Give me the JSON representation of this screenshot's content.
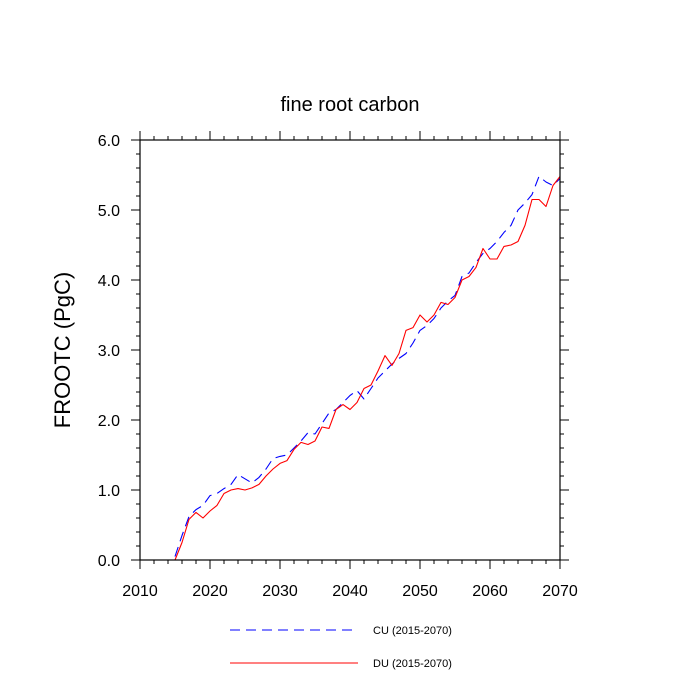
{
  "chart_data": {
    "type": "line",
    "title": "fine root carbon",
    "xlabel": "",
    "ylabel": "FROOTC  (PgC)",
    "xlim": [
      2010,
      2070
    ],
    "ylim": [
      0,
      6
    ],
    "xticks": [
      2010,
      2020,
      2030,
      2040,
      2050,
      2060,
      2070
    ],
    "xtick_labels": [
      "2010",
      "2020",
      "2030",
      "2040",
      "2050",
      "2060",
      "2070"
    ],
    "yticks": [
      0,
      1,
      2,
      3,
      4,
      5,
      6
    ],
    "ytick_labels": [
      "0.0",
      "1.0",
      "2.0",
      "3.0",
      "4.0",
      "5.0",
      "6.0"
    ],
    "grid": false,
    "legend_position": "bottom",
    "series": [
      {
        "name": "CU (2015-2070)",
        "color": "#0000ff",
        "style": "dashed",
        "x": [
          2015,
          2016,
          2017,
          2018,
          2019,
          2020,
          2021,
          2022,
          2023,
          2024,
          2025,
          2026,
          2027,
          2028,
          2029,
          2030,
          2031,
          2032,
          2033,
          2034,
          2035,
          2036,
          2037,
          2038,
          2039,
          2040,
          2041,
          2042,
          2043,
          2044,
          2045,
          2046,
          2047,
          2048,
          2049,
          2050,
          2051,
          2052,
          2053,
          2054,
          2055,
          2056,
          2057,
          2058,
          2059,
          2060,
          2061,
          2062,
          2063,
          2064,
          2065,
          2066,
          2067,
          2068,
          2069,
          2070
        ],
        "values": [
          0.05,
          0.35,
          0.62,
          0.72,
          0.78,
          0.92,
          0.95,
          1.02,
          1.08,
          1.22,
          1.16,
          1.1,
          1.18,
          1.3,
          1.45,
          1.48,
          1.5,
          1.6,
          1.7,
          1.82,
          1.8,
          1.95,
          2.1,
          2.15,
          2.25,
          2.35,
          2.42,
          2.3,
          2.45,
          2.6,
          2.7,
          2.8,
          2.88,
          2.95,
          3.1,
          3.28,
          3.35,
          3.45,
          3.6,
          3.7,
          3.78,
          4.05,
          4.1,
          4.25,
          4.38,
          4.45,
          4.55,
          4.68,
          4.78,
          5.0,
          5.1,
          5.22,
          5.48,
          5.4,
          5.35,
          5.45
        ]
      },
      {
        "name": "DU (2015-2070)",
        "color": "#ff0000",
        "style": "solid",
        "x": [
          2015,
          2016,
          2017,
          2018,
          2019,
          2020,
          2021,
          2022,
          2023,
          2024,
          2025,
          2026,
          2027,
          2028,
          2029,
          2030,
          2031,
          2032,
          2033,
          2034,
          2035,
          2036,
          2037,
          2038,
          2039,
          2040,
          2041,
          2042,
          2043,
          2044,
          2045,
          2046,
          2047,
          2048,
          2049,
          2050,
          2051,
          2052,
          2053,
          2054,
          2055,
          2056,
          2057,
          2058,
          2059,
          2060,
          2061,
          2062,
          2063,
          2064,
          2065,
          2066,
          2067,
          2068,
          2069,
          2070
        ],
        "values": [
          0.0,
          0.25,
          0.58,
          0.68,
          0.6,
          0.7,
          0.78,
          0.95,
          1.0,
          1.02,
          1.0,
          1.03,
          1.08,
          1.2,
          1.3,
          1.38,
          1.42,
          1.58,
          1.68,
          1.65,
          1.7,
          1.9,
          1.88,
          2.15,
          2.22,
          2.15,
          2.25,
          2.45,
          2.5,
          2.7,
          2.92,
          2.78,
          2.95,
          3.28,
          3.32,
          3.5,
          3.4,
          3.5,
          3.68,
          3.65,
          3.75,
          4.0,
          4.05,
          4.18,
          4.45,
          4.3,
          4.3,
          4.48,
          4.5,
          4.55,
          4.78,
          5.15,
          5.15,
          5.05,
          5.35,
          5.48
        ]
      }
    ]
  }
}
